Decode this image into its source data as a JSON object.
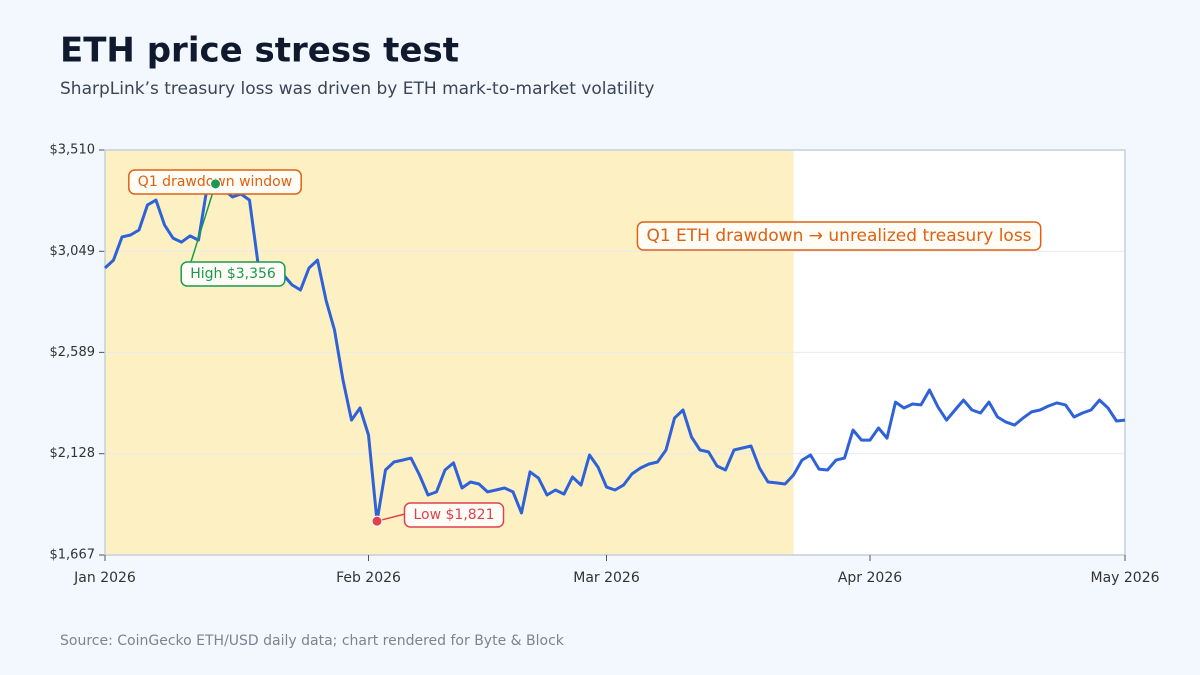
{
  "chart_data": {
    "type": "line",
    "title": "ETH price stress test",
    "subtitle": "SharpLink’s treasury loss was driven by ETH mark-to-market volatility",
    "source": "Source: CoinGecko ETH/USD daily data; chart rendered for Byte & Block",
    "callout": "Q1 ETH drawdown → unrealized treasury loss",
    "shaded_region": {
      "label": "Q1 drawdown window",
      "xlim": [
        0,
        81
      ],
      "color": "#fdf1c4"
    },
    "high": {
      "label": "High $3,356",
      "x": 13,
      "value": 3356,
      "color": "#1a9a50"
    },
    "low": {
      "label": "Low $1,821",
      "x": 32,
      "value": 1821,
      "color": "#e0404f"
    },
    "color": "#2f62d8",
    "grid": true,
    "xlim": [
      0,
      120
    ],
    "xticks": [
      {
        "value": 0,
        "label": "Jan 2026"
      },
      {
        "value": 31,
        "label": "Feb 2026"
      },
      {
        "value": 59,
        "label": "Mar 2026"
      },
      {
        "value": 90,
        "label": "Apr 2026"
      },
      {
        "value": 120,
        "label": "May 2026"
      }
    ],
    "ylim": [
      1667,
      3510
    ],
    "yticks": [
      {
        "value": 1667,
        "label": "$1,667"
      },
      {
        "value": 2128,
        "label": "$2,128"
      },
      {
        "value": 2589,
        "label": "$2,589"
      },
      {
        "value": 3049,
        "label": "$3,049"
      },
      {
        "value": 3510,
        "label": "$3,510"
      }
    ],
    "x": [
      0,
      1,
      2,
      3,
      4,
      5,
      6,
      7,
      8,
      9,
      10,
      11,
      12,
      13,
      14,
      15,
      16,
      17,
      18,
      19,
      20,
      21,
      22,
      23,
      24,
      25,
      26,
      27,
      28,
      29,
      30,
      31,
      32,
      33,
      34,
      35,
      36,
      37,
      38,
      39,
      40,
      41,
      42,
      43,
      44,
      45,
      46,
      47,
      48,
      49,
      50,
      51,
      52,
      53,
      54,
      55,
      56,
      57,
      58,
      59,
      60,
      61,
      62,
      63,
      64,
      65,
      66,
      67,
      68,
      69,
      70,
      71,
      72,
      73,
      74,
      75,
      76,
      77,
      78,
      79,
      80,
      81,
      82,
      83,
      84,
      85,
      86,
      87,
      88,
      89,
      90,
      91,
      92,
      93,
      94,
      95,
      96,
      97,
      98,
      99,
      100,
      101,
      102,
      103,
      104,
      105,
      106,
      107,
      108,
      109,
      110,
      111,
      112,
      113,
      114,
      115,
      116,
      117,
      118,
      119,
      120
    ],
    "values": [
      2973,
      3009,
      3114,
      3123,
      3146,
      3260,
      3282,
      3169,
      3109,
      3091,
      3119,
      3100,
      3337,
      3356,
      3328,
      3296,
      3310,
      3282,
      2995,
      2960,
      2918,
      2941,
      2896,
      2873,
      2973,
      3009,
      2827,
      2691,
      2463,
      2281,
      2336,
      2213,
      1821,
      2054,
      2090,
      2099,
      2108,
      2031,
      1940,
      1954,
      2054,
      2086,
      1972,
      1999,
      1990,
      1954,
      1963,
      1972,
      1954,
      1858,
      2045,
      2017,
      1940,
      1963,
      1944,
      2022,
      1985,
      2122,
      2067,
      1976,
      1963,
      1985,
      2036,
      2063,
      2081,
      2090,
      2145,
      2290,
      2327,
      2204,
      2145,
      2136,
      2072,
      2054,
      2145,
      2154,
      2163,
      2063,
      1999,
      1995,
      1990,
      2031,
      2099,
      2122,
      2058,
      2054,
      2099,
      2108,
      2236,
      2190,
      2190,
      2245,
      2199,
      2363,
      2336,
      2354,
      2350,
      2418,
      2340,
      2281,
      2327,
      2372,
      2327,
      2313,
      2363,
      2295,
      2272,
      2258,
      2290,
      2318,
      2327,
      2345,
      2359,
      2350,
      2295,
      2313,
      2327,
      2372,
      2336,
      2277,
      2281
    ]
  }
}
